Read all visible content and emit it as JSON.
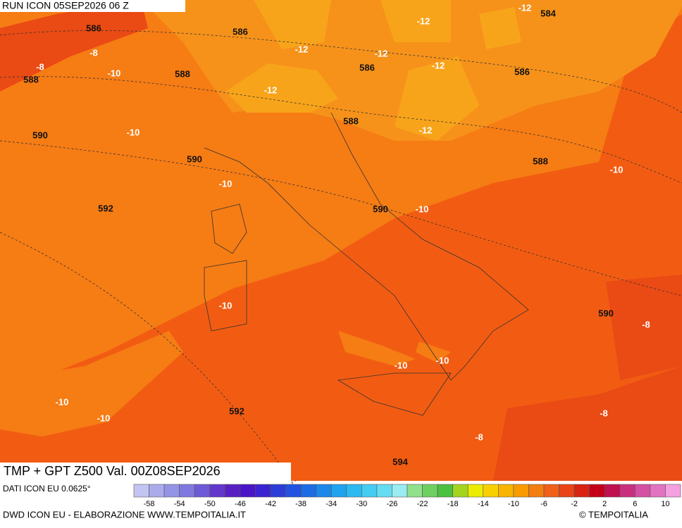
{
  "header": {
    "run": "RUN ICON 05SEP2026 06 Z",
    "product": "TMP + GPT Z500 Val. 00Z08SEP2026"
  },
  "map": {
    "geopotential_labels": [
      586,
      586,
      588,
      588,
      586,
      584,
      586,
      590,
      590,
      588,
      588,
      592,
      590,
      590,
      592,
      594
    ],
    "temperature_labels": [
      -8,
      -8,
      -10,
      -12,
      -12,
      -12,
      -12,
      -12,
      -12,
      -10,
      -12,
      -10,
      -10,
      -10,
      -10,
      -8,
      -10,
      -10,
      -10,
      -10,
      -8,
      -8
    ]
  },
  "legend": {
    "colors": [
      "#c4c4f2",
      "#ababec",
      "#9494e6",
      "#8078de",
      "#6e5ad6",
      "#6238cc",
      "#5820c2",
      "#4a14c8",
      "#3a24d0",
      "#2c3cd8",
      "#2252e0",
      "#1c6ce6",
      "#1c88ea",
      "#20a2ee",
      "#2cbaf0",
      "#44ccf2",
      "#66dcf2",
      "#98ecf2",
      "#90e08c",
      "#6ed060",
      "#4cc040",
      "#a4d420",
      "#ecec00",
      "#f8d000",
      "#f8b400",
      "#f89a00",
      "#f47e10",
      "#f06018",
      "#e84418",
      "#d82410",
      "#c40018",
      "#c01050",
      "#c8307e",
      "#d450a2",
      "#e272c2",
      "#f4a0e0"
    ],
    "ticks": [
      -58,
      -54,
      -50,
      -46,
      -42,
      -38,
      -34,
      -30,
      -26,
      -22,
      -18,
      -14,
      -10,
      -6,
      -2,
      2,
      6,
      10
    ]
  },
  "footer": {
    "source": "DATI ICON EU 0.0625°",
    "credit": "DWD ICON EU - ELABORAZIONE WWW.TEMPOITALIA.IT",
    "brand": "© TEMPOITALIA"
  }
}
